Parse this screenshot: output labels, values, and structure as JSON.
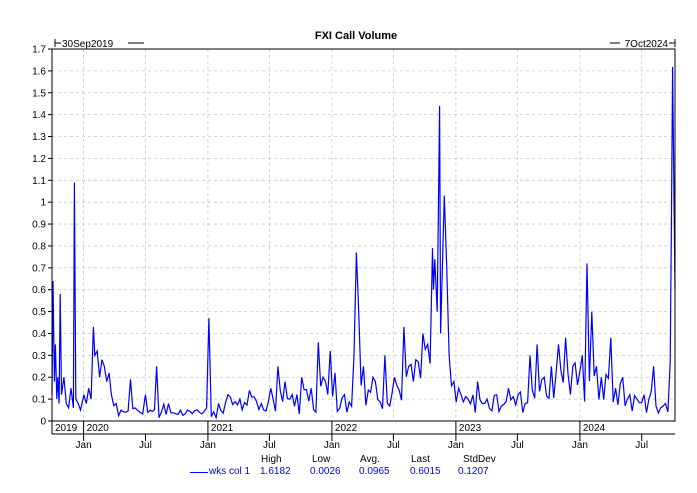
{
  "chart_data": {
    "type": "line",
    "title": "FXI Call Volume",
    "start_label": "30Sep2019",
    "end_label": "7Oct2024",
    "x_start": "2019-09-30",
    "x_end": "2024-10-07",
    "ylim": [
      0,
      1.7
    ],
    "y_ticks": [
      0,
      0.1,
      0.2,
      0.3,
      0.4,
      0.5,
      0.6,
      0.7,
      0.8,
      0.9,
      1,
      1.1,
      1.2,
      1.3,
      1.4,
      1.5,
      1.6,
      1.7
    ],
    "grid": true,
    "x_tick_labels": [
      {
        "date": "2020-01-01",
        "label": "Jan"
      },
      {
        "date": "2020-07-01",
        "label": "Jul"
      },
      {
        "date": "2021-01-01",
        "label": "Jan"
      },
      {
        "date": "2021-07-01",
        "label": "Jul"
      },
      {
        "date": "2022-01-01",
        "label": "Jan"
      },
      {
        "date": "2022-07-01",
        "label": "Jul"
      },
      {
        "date": "2023-01-01",
        "label": "Jan"
      },
      {
        "date": "2023-07-01",
        "label": "Jul"
      },
      {
        "date": "2024-01-01",
        "label": "Jan"
      },
      {
        "date": "2024-07-01",
        "label": "Jul"
      }
    ],
    "year_labels": [
      {
        "date": "2019-09-30",
        "label": "2019"
      },
      {
        "date": "2020-01-01",
        "label": "2020"
      },
      {
        "date": "2021-01-01",
        "label": "2021"
      },
      {
        "date": "2022-01-01",
        "label": "2022"
      },
      {
        "date": "2023-01-01",
        "label": "2023"
      },
      {
        "date": "2024-01-01",
        "label": "2024"
      }
    ],
    "series": [
      {
        "name": "wks col 1",
        "color": "#0000ff",
        "points": [
          [
            "2019-09-30",
            0.12
          ],
          [
            "2019-10-03",
            0.64
          ],
          [
            "2019-10-07",
            0.18
          ],
          [
            "2019-10-10",
            0.35
          ],
          [
            "2019-10-14",
            0.1
          ],
          [
            "2019-10-17",
            0.2
          ],
          [
            "2019-10-21",
            0.08
          ],
          [
            "2019-10-24",
            0.58
          ],
          [
            "2019-10-28",
            0.12
          ],
          [
            "2019-11-04",
            0.2
          ],
          [
            "2019-11-11",
            0.08
          ],
          [
            "2019-11-18",
            0.06
          ],
          [
            "2019-11-25",
            0.15
          ],
          [
            "2019-12-02",
            0.06
          ],
          [
            "2019-12-05",
            1.09
          ],
          [
            "2019-12-09",
            0.1
          ],
          [
            "2019-12-16",
            0.08
          ],
          [
            "2019-12-23",
            0.05
          ],
          [
            "2020-01-02",
            0.12
          ],
          [
            "2020-01-09",
            0.08
          ],
          [
            "2020-01-16",
            0.15
          ],
          [
            "2020-01-23",
            0.1
          ],
          [
            "2020-01-30",
            0.43
          ],
          [
            "2020-02-03",
            0.3
          ],
          [
            "2020-02-10",
            0.32
          ],
          [
            "2020-02-17",
            0.2
          ],
          [
            "2020-02-24",
            0.28
          ],
          [
            "2020-03-02",
            0.25
          ],
          [
            "2020-03-09",
            0.18
          ],
          [
            "2020-03-16",
            0.22
          ],
          [
            "2020-03-23",
            0.12
          ],
          [
            "2020-04-06",
            0.08
          ],
          [
            "2020-04-20",
            0.05
          ],
          [
            "2020-05-04",
            0.04
          ],
          [
            "2020-05-18",
            0.19
          ],
          [
            "2020-06-01",
            0.06
          ],
          [
            "2020-06-15",
            0.04
          ],
          [
            "2020-07-01",
            0.12
          ],
          [
            "2020-07-15",
            0.05
          ],
          [
            "2020-08-03",
            0.25
          ],
          [
            "2020-08-17",
            0.04
          ],
          [
            "2020-09-07",
            0.08
          ],
          [
            "2020-10-05",
            0.03
          ],
          [
            "2020-11-02",
            0.05
          ],
          [
            "2020-12-07",
            0.04
          ],
          [
            "2020-12-28",
            0.06
          ],
          [
            "2021-01-04",
            0.47
          ],
          [
            "2021-01-11",
            0.02
          ],
          [
            "2021-02-01",
            0.08
          ],
          [
            "2021-03-01",
            0.12
          ],
          [
            "2021-04-05",
            0.1
          ],
          [
            "2021-05-03",
            0.14
          ],
          [
            "2021-06-07",
            0.08
          ],
          [
            "2021-07-05",
            0.15
          ],
          [
            "2021-07-26",
            0.25
          ],
          [
            "2021-08-16",
            0.18
          ],
          [
            "2021-09-06",
            0.12
          ],
          [
            "2021-10-04",
            0.2
          ],
          [
            "2021-11-01",
            0.15
          ],
          [
            "2021-11-22",
            0.36
          ],
          [
            "2021-12-06",
            0.2
          ],
          [
            "2021-12-27",
            0.32
          ],
          [
            "2022-01-10",
            0.22
          ],
          [
            "2022-02-07",
            0.12
          ],
          [
            "2022-03-07",
            0.3
          ],
          [
            "2022-03-14",
            0.77
          ],
          [
            "2022-03-21",
            0.5
          ],
          [
            "2022-04-04",
            0.25
          ],
          [
            "2022-05-02",
            0.2
          ],
          [
            "2022-06-06",
            0.3
          ],
          [
            "2022-07-04",
            0.2
          ],
          [
            "2022-08-01",
            0.43
          ],
          [
            "2022-08-15",
            0.25
          ],
          [
            "2022-09-05",
            0.28
          ],
          [
            "2022-09-26",
            0.4
          ],
          [
            "2022-10-10",
            0.35
          ],
          [
            "2022-10-24",
            0.79
          ],
          [
            "2022-10-27",
            0.6
          ],
          [
            "2022-10-31",
            0.74
          ],
          [
            "2022-11-07",
            0.5
          ],
          [
            "2022-11-14",
            1.44
          ],
          [
            "2022-11-17",
            0.4
          ],
          [
            "2022-11-28",
            1.03
          ],
          [
            "2022-12-05",
            0.71
          ],
          [
            "2022-12-12",
            0.3
          ],
          [
            "2022-12-26",
            0.18
          ],
          [
            "2023-01-09",
            0.15
          ],
          [
            "2023-02-06",
            0.1
          ],
          [
            "2023-03-06",
            0.18
          ],
          [
            "2023-04-03",
            0.1
          ],
          [
            "2023-05-01",
            0.12
          ],
          [
            "2023-06-05",
            0.15
          ],
          [
            "2023-07-03",
            0.12
          ],
          [
            "2023-08-07",
            0.3
          ],
          [
            "2023-08-28",
            0.35
          ],
          [
            "2023-09-18",
            0.2
          ],
          [
            "2023-10-09",
            0.25
          ],
          [
            "2023-10-30",
            0.35
          ],
          [
            "2023-11-20",
            0.38
          ],
          [
            "2023-12-11",
            0.25
          ],
          [
            "2024-01-08",
            0.3
          ],
          [
            "2024-01-22",
            0.72
          ],
          [
            "2024-02-05",
            0.5
          ],
          [
            "2024-02-19",
            0.25
          ],
          [
            "2024-03-04",
            0.2
          ],
          [
            "2024-04-01",
            0.38
          ],
          [
            "2024-04-15",
            0.15
          ],
          [
            "2024-05-06",
            0.2
          ],
          [
            "2024-05-27",
            0.12
          ],
          [
            "2024-06-17",
            0.1
          ],
          [
            "2024-07-08",
            0.12
          ],
          [
            "2024-08-05",
            0.25
          ],
          [
            "2024-08-26",
            0.06
          ],
          [
            "2024-09-09",
            0.08
          ],
          [
            "2024-09-23",
            0.27
          ],
          [
            "2024-09-26",
            0.84
          ],
          [
            "2024-09-30",
            1.6182
          ],
          [
            "2024-10-07",
            0.6015
          ]
        ]
      }
    ]
  },
  "stats": {
    "headers": [
      "High",
      "Low",
      "Avg.",
      "Last",
      "StdDev"
    ],
    "legend_label": "wks col 1",
    "values": [
      "1.6182",
      "0.0026",
      "0.0965",
      "0.6015",
      "0.1207"
    ]
  }
}
